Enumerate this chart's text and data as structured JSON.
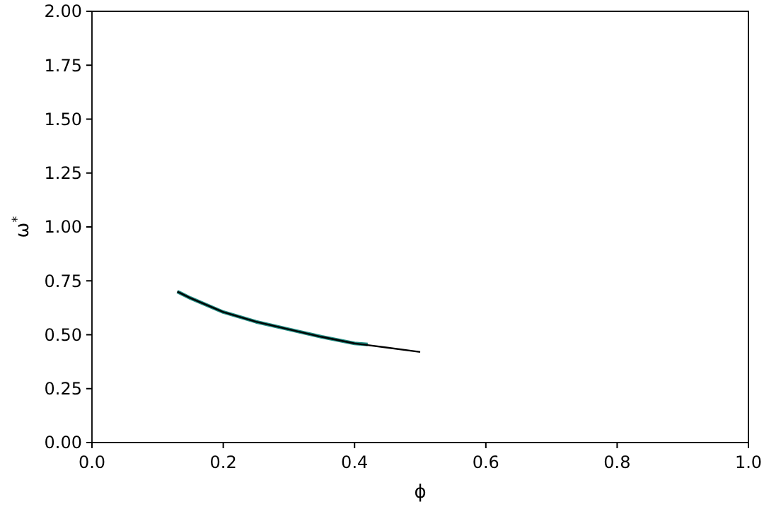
{
  "chart_data": {
    "type": "line",
    "xlabel": "ϕ",
    "ylabel": "ω$^{*}$",
    "xlim": [
      0,
      1
    ],
    "xticks": [
      {
        "value": 0,
        "label": "0.0"
      },
      {
        "value": 0.2,
        "label": "0.2"
      },
      {
        "value": 0.4,
        "label": "0.4"
      },
      {
        "value": 0.6,
        "label": "0.6"
      },
      {
        "value": 0.8,
        "label": "0.8"
      },
      {
        "value": 1,
        "label": "1.0"
      }
    ],
    "ylim": [
      0,
      2
    ],
    "yticks": [
      {
        "value": 0,
        "label": "0.00"
      },
      {
        "value": 0.25,
        "label": "0.25"
      },
      {
        "value": 0.5,
        "label": "0.50"
      },
      {
        "value": 0.75,
        "label": "0.75"
      },
      {
        "value": 1,
        "label": "1.00"
      },
      {
        "value": 1.25,
        "label": "1.25"
      },
      {
        "value": 1.5,
        "label": "1.50"
      },
      {
        "value": 1.75,
        "label": "1.75"
      },
      {
        "value": 2,
        "label": "2.00"
      }
    ],
    "grid": false,
    "series": [
      {
        "color": "#1f8a80",
        "x": [
          0.13,
          0.15,
          0.2,
          0.25,
          0.3,
          0.35,
          0.4,
          0.42
        ],
        "values": [
          0.7,
          0.67,
          0.605,
          0.56,
          0.525,
          0.49,
          0.46,
          0.455
        ]
      },
      {
        "color": "#000000",
        "x": [
          0.13,
          0.15,
          0.2,
          0.25,
          0.3,
          0.35,
          0.4,
          0.45,
          0.5
        ],
        "values": [
          0.7,
          0.67,
          0.605,
          0.56,
          0.525,
          0.49,
          0.46,
          0.44,
          0.42
        ]
      }
    ]
  }
}
